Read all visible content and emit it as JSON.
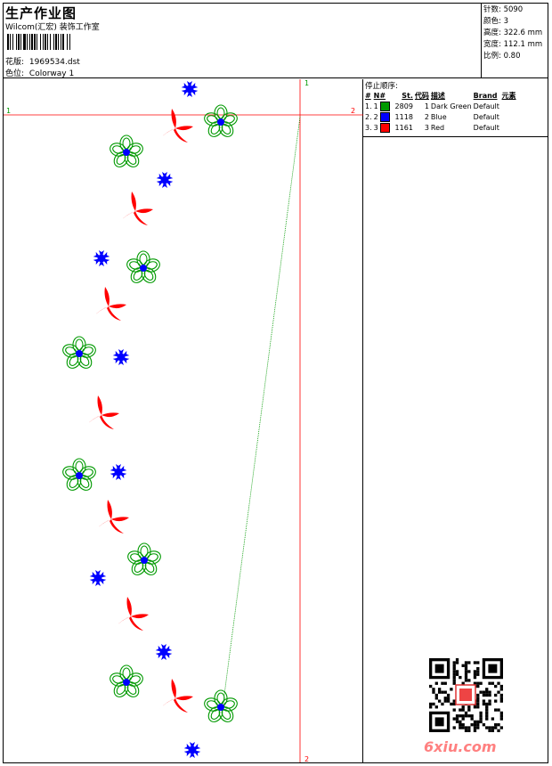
{
  "header": {
    "title": "生产作业图",
    "company": "Wilcom(汇宏) 装饰工作室",
    "pattern_label": "花版:",
    "pattern_value": "1969534.dst",
    "color_label": "色位:",
    "color_value": "Colorway 1"
  },
  "stats": {
    "stitches": "针数: 5090",
    "colors": "颜色: 3",
    "height": "高度: 322.6 mm",
    "width": "宽度: 112.1 mm",
    "scale": "比例: 0.80"
  },
  "legend": {
    "title": "停止顺序:",
    "headers": [
      "#",
      "N#",
      "St.",
      "代码",
      "描述",
      "Brand",
      "元素"
    ],
    "rows": [
      {
        "idx": "1.",
        "n": "1",
        "color": "#009900",
        "st": "2809",
        "code": "1",
        "desc": "Dark Green",
        "brand": "Default"
      },
      {
        "idx": "2.",
        "n": "2",
        "color": "#0000ff",
        "st": "1118",
        "code": "2",
        "desc": "Blue",
        "brand": "Default"
      },
      {
        "idx": "3.",
        "n": "3",
        "color": "#ff0000",
        "st": "1161",
        "code": "3",
        "desc": "Red",
        "brand": "Default"
      }
    ]
  },
  "guides": {
    "v_top": "1",
    "v_bottom": "2",
    "h_left": "1",
    "h_right": "2"
  },
  "watermark": "6xiu.com",
  "colors": {
    "green": "#009900",
    "blue": "#0000ff",
    "red": "#ff0000",
    "guide": "#ff0000"
  }
}
